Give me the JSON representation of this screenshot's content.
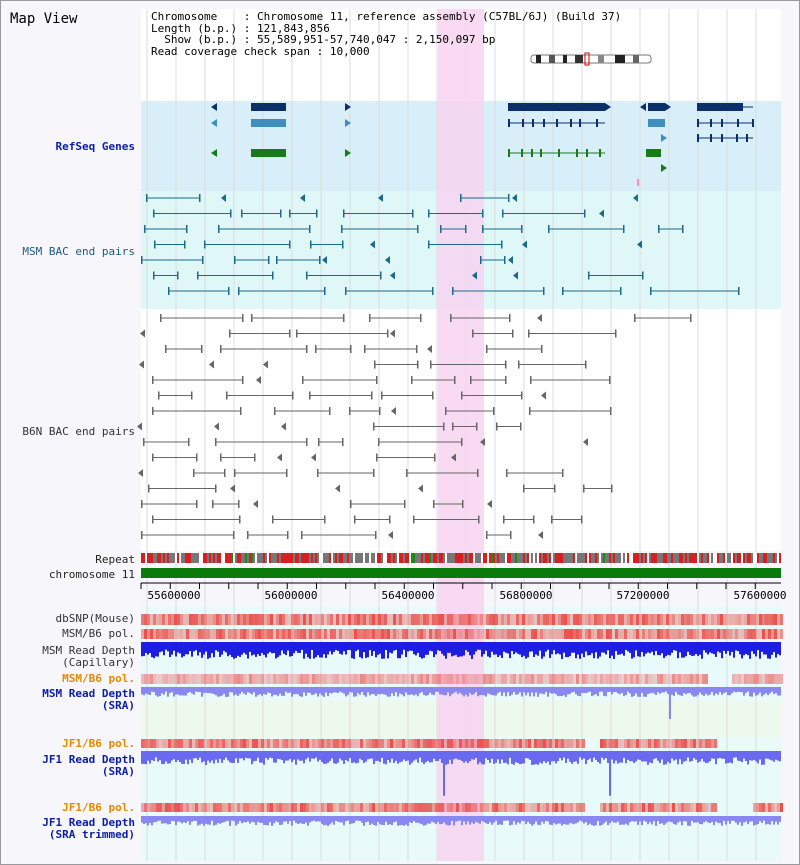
{
  "title": "Map View",
  "info": {
    "chromosome_label": "Chromosome",
    "chromosome_value": "Chromosome 11, reference assembly (C57BL/6J) (Build 37)",
    "length_label": "Length (b.p.)",
    "length_value": "121,843,856",
    "show_label": "Show (b.p.)",
    "show_value": "55,589,951-57,740,047 : 2,150,097 bp",
    "coverage_label": "Read coverage check span",
    "coverage_value": "10,000"
  },
  "tracks": {
    "refseq": "RefSeq Genes",
    "msm_bac": "MSM BAC end pairs",
    "b6n_bac": "B6N BAC end pairs",
    "repeat": "Repeat",
    "chromosome": "chromosome 11",
    "dbsnp": "dbSNP(Mouse)",
    "msm_b6_pol_1": "MSM/B6 pol.",
    "msm_read_depth_cap_1": "MSM Read Depth",
    "msm_read_depth_cap_2": "(Capillary)",
    "msm_b6_pol_2": "MSM/B6 pol.",
    "msm_read_depth_sra_1": "MSM Read Depth",
    "msm_read_depth_sra_2": "(SRA)",
    "jf1_b6_pol_1": "JF1/B6 pol.",
    "jf1_read_depth_sra_1": "JF1 Read Depth",
    "jf1_read_depth_sra_2": "(SRA)",
    "jf1_b6_pol_2": "JF1/B6 pol.",
    "jf1_read_depth_trim_1": "JF1 Read Depth",
    "jf1_read_depth_trim_2": "(SRA trimmed)"
  },
  "axis": {
    "ticks": [
      "55600000",
      "56000000",
      "56400000",
      "56800000",
      "57200000",
      "57600000"
    ]
  },
  "colors": {
    "highlight": "#f7d4f0",
    "refseq_bg": "#d8eef9",
    "msm_bg": "#dff7f6",
    "gene_dark": "#0a2f6b",
    "gene_mid": "#3e8fbf",
    "gene_green": "#1a7a1a",
    "msm_line": "#1b6a8a",
    "b6n_line": "#666666",
    "chrom_bar": "#0a7a0a",
    "snp_red": "#e8504a",
    "depth_blue": "#1e1ee0",
    "depth_light": "#8888f0"
  }
}
